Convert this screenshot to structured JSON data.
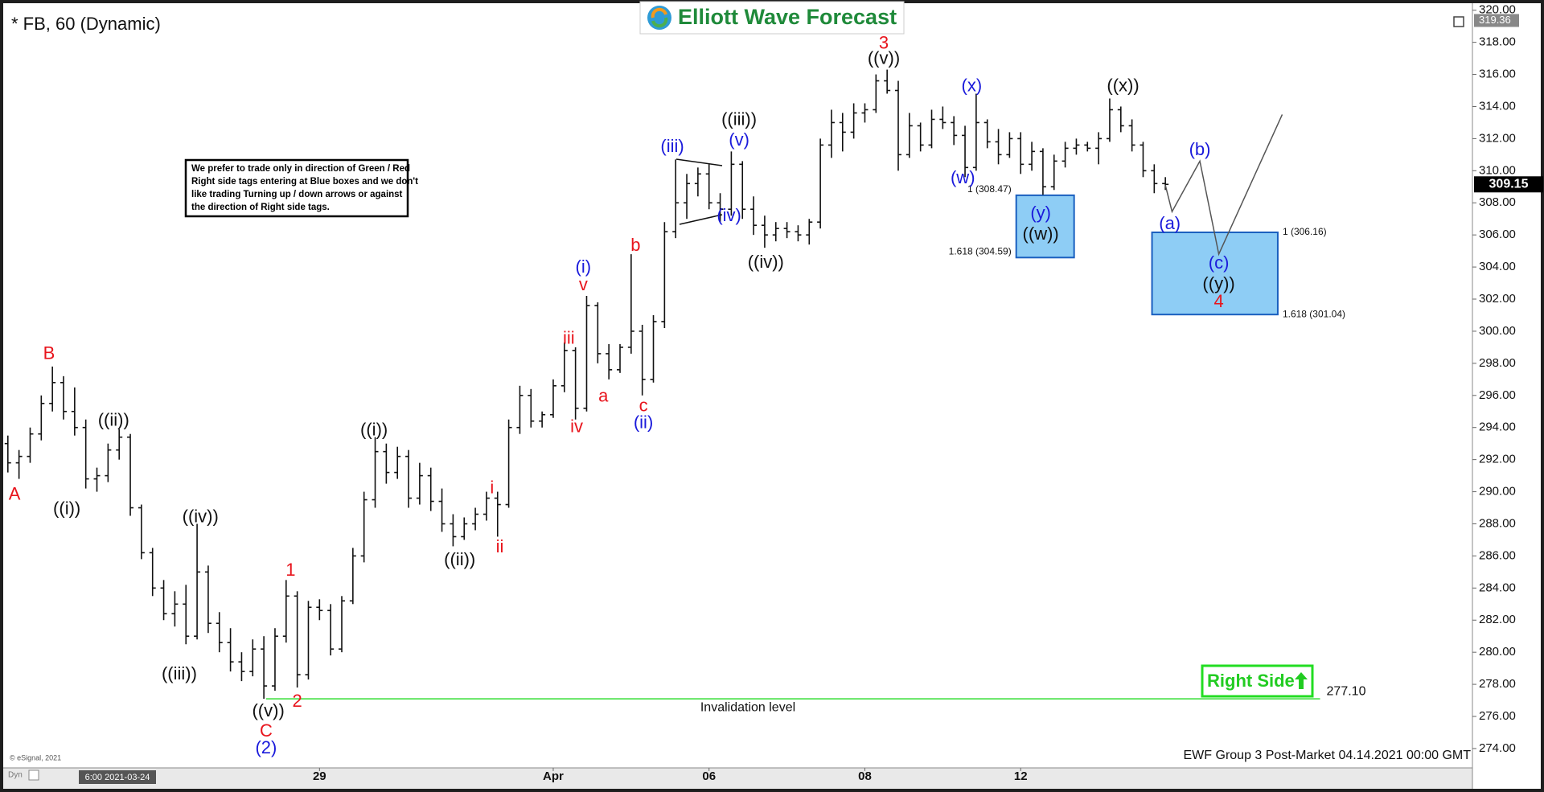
{
  "chart_data": {
    "type": "ohlc",
    "title": "* FB, 60 (Dynamic)",
    "logo": "Elliott Wave Forecast",
    "note": [
      "We prefer to trade only in direction of Green / Red",
      "Right side tags entering at Blue boxes and we don't",
      "like trading Turning up / down arrows or against",
      "the direction of Right side tags."
    ],
    "footer": "EWF Group 3 Post-Market 04.14.2021 00:00 GMT",
    "source": "© eSignal, 2021",
    "cursor_time": "6:00 2021-03-24",
    "mode": "Dyn",
    "right_side": "Right Side",
    "color": "#111111",
    "ylim": [
      272.8,
      320
    ],
    "yticks": [
      {
        "value": 274,
        "label": "274.00"
      },
      {
        "value": 276,
        "label": "276.00"
      },
      {
        "value": 278,
        "label": "278.00"
      },
      {
        "value": 280,
        "label": "280.00"
      },
      {
        "value": 282,
        "label": "282.00"
      },
      {
        "value": 284,
        "label": "284.00"
      },
      {
        "value": 286,
        "label": "286.00"
      },
      {
        "value": 288,
        "label": "288.00"
      },
      {
        "value": 290,
        "label": "290.00"
      },
      {
        "value": 292,
        "label": "292.00"
      },
      {
        "value": 294,
        "label": "294.00"
      },
      {
        "value": 296,
        "label": "296.00"
      },
      {
        "value": 298,
        "label": "298.00"
      },
      {
        "value": 300,
        "label": "300.00"
      },
      {
        "value": 302,
        "label": "302.00"
      },
      {
        "value": 304,
        "label": "304.00"
      },
      {
        "value": 306,
        "label": "306.00"
      },
      {
        "value": 308,
        "label": "308.00"
      },
      {
        "value": 310,
        "label": "310.00"
      },
      {
        "value": 312,
        "label": "312.00"
      },
      {
        "value": 314,
        "label": "314.00"
      },
      {
        "value": 316,
        "label": "316.00"
      },
      {
        "value": 318,
        "label": "318.00"
      },
      {
        "value": 320,
        "label": "320.00"
      }
    ],
    "grid": false,
    "high_flag": 319.36,
    "categories": [
      null,
      null,
      null,
      null,
      null,
      null,
      null,
      null,
      null,
      null,
      null,
      null,
      null,
      null,
      null,
      null,
      null,
      null,
      null,
      null,
      null,
      null,
      null,
      null,
      null,
      null,
      null,
      null,
      "29",
      null,
      null,
      null,
      null,
      null,
      null,
      null,
      null,
      null,
      null,
      null,
      null,
      null,
      null,
      null,
      null,
      null,
      null,
      null,
      null,
      "Apr",
      null,
      null,
      null,
      null,
      null,
      null,
      null,
      null,
      null,
      null,
      null,
      null,
      null,
      "06",
      null,
      null,
      null,
      null,
      null,
      null,
      null,
      null,
      null,
      null,
      null,
      null,
      null,
      "08",
      null,
      null,
      null,
      null,
      null,
      null,
      null,
      null,
      null,
      null,
      null,
      null,
      null,
      "12",
      null,
      null,
      null,
      null,
      null,
      null,
      null,
      null,
      null,
      null,
      null,
      null,
      null
    ],
    "ohlc": [
      [
        293.0,
        293.5,
        291.2,
        291.8
      ],
      [
        291.8,
        292.6,
        290.8,
        292.2
      ],
      [
        292.2,
        294.0,
        291.8,
        293.6
      ],
      [
        293.6,
        296.0,
        293.2,
        295.5
      ],
      [
        295.5,
        297.8,
        295.0,
        296.8
      ],
      [
        296.8,
        297.2,
        294.5,
        295.0
      ],
      [
        295.0,
        296.5,
        293.5,
        294.0
      ],
      [
        294.0,
        294.5,
        290.2,
        290.8
      ],
      [
        290.8,
        291.5,
        290.0,
        291.0
      ],
      [
        291.0,
        293.0,
        290.6,
        292.6
      ],
      [
        292.6,
        293.9,
        292.0,
        293.4
      ],
      [
        293.4,
        293.6,
        288.5,
        289.0
      ],
      [
        289.0,
        289.2,
        285.8,
        286.2
      ],
      [
        286.2,
        286.5,
        283.5,
        284.0
      ],
      [
        284.0,
        284.5,
        282.0,
        282.4
      ],
      [
        282.4,
        283.8,
        281.6,
        283.0
      ],
      [
        283.0,
        284.2,
        280.5,
        281.0
      ],
      [
        281.0,
        288.0,
        280.8,
        285.0
      ],
      [
        285.0,
        285.4,
        281.2,
        281.8
      ],
      [
        281.8,
        282.5,
        280.0,
        280.6
      ],
      [
        280.6,
        281.5,
        278.8,
        279.4
      ],
      [
        279.4,
        280.0,
        278.2,
        278.8
      ],
      [
        278.8,
        280.8,
        278.5,
        280.2
      ],
      [
        280.2,
        281.0,
        277.1,
        277.9
      ],
      [
        277.9,
        281.5,
        277.6,
        281.0
      ],
      [
        281.0,
        284.5,
        280.6,
        283.5
      ],
      [
        283.5,
        283.8,
        277.8,
        278.6
      ],
      [
        278.6,
        283.2,
        278.3,
        282.8
      ],
      [
        282.8,
        283.3,
        282.0,
        282.6
      ],
      [
        282.6,
        283.0,
        279.8,
        280.2
      ],
      [
        280.2,
        283.5,
        280.0,
        283.2
      ],
      [
        283.2,
        286.5,
        283.0,
        286.0
      ],
      [
        286.0,
        290.0,
        285.6,
        289.5
      ],
      [
        289.5,
        293.4,
        289.0,
        292.5
      ],
      [
        292.5,
        293.0,
        290.5,
        291.2
      ],
      [
        291.2,
        292.8,
        290.8,
        292.2
      ],
      [
        292.2,
        292.6,
        289.0,
        289.6
      ],
      [
        289.6,
        291.8,
        289.2,
        291.0
      ],
      [
        291.0,
        291.5,
        288.8,
        289.4
      ],
      [
        289.4,
        290.2,
        287.5,
        288.0
      ],
      [
        288.0,
        288.6,
        286.6,
        287.2
      ],
      [
        287.2,
        288.4,
        287.0,
        288.0
      ],
      [
        288.0,
        289.0,
        287.6,
        288.6
      ],
      [
        288.6,
        290.0,
        288.2,
        289.6
      ],
      [
        289.6,
        290.0,
        287.2,
        289.2
      ],
      [
        289.2,
        294.5,
        289.0,
        294.0
      ],
      [
        294.0,
        296.6,
        293.6,
        296.0
      ],
      [
        296.0,
        296.4,
        294.0,
        294.4
      ],
      [
        294.4,
        295.0,
        294.0,
        294.8
      ],
      [
        294.8,
        297.0,
        294.6,
        296.6
      ],
      [
        296.6,
        299.3,
        296.2,
        298.8
      ],
      [
        298.8,
        299.0,
        294.5,
        295.2
      ],
      [
        295.2,
        302.2,
        295.0,
        301.6
      ],
      [
        301.6,
        301.8,
        298.0,
        298.6
      ],
      [
        298.6,
        299.2,
        297.0,
        297.6
      ],
      [
        297.6,
        299.2,
        297.4,
        299.0
      ],
      [
        299.0,
        304.8,
        298.6,
        300.0
      ],
      [
        300.0,
        300.4,
        296.0,
        297.0
      ],
      [
        297.0,
        301.0,
        296.8,
        300.6
      ],
      [
        300.6,
        306.8,
        300.2,
        306.2
      ],
      [
        306.2,
        310.7,
        305.8,
        308.0
      ],
      [
        308.0,
        309.8,
        307.0,
        309.2
      ],
      [
        309.2,
        310.2,
        308.4,
        309.8
      ],
      [
        309.8,
        310.4,
        307.6,
        308.0
      ],
      [
        308.0,
        308.6,
        306.8,
        307.6
      ],
      [
        307.6,
        311.2,
        307.2,
        310.4
      ],
      [
        310.4,
        310.6,
        307.0,
        307.6
      ],
      [
        307.6,
        308.4,
        306.0,
        306.6
      ],
      [
        306.6,
        307.2,
        305.2,
        306.0
      ],
      [
        306.0,
        306.8,
        305.6,
        306.4
      ],
      [
        306.4,
        306.8,
        305.8,
        306.2
      ],
      [
        306.2,
        306.6,
        305.6,
        306.0
      ],
      [
        306.0,
        307.0,
        305.4,
        306.8
      ],
      [
        306.8,
        312.0,
        306.4,
        311.6
      ],
      [
        311.6,
        313.8,
        310.8,
        313.0
      ],
      [
        313.0,
        313.6,
        311.2,
        312.4
      ],
      [
        312.4,
        314.2,
        312.0,
        313.6
      ],
      [
        313.6,
        314.2,
        313.0,
        313.8
      ],
      [
        313.8,
        316.0,
        313.6,
        315.6
      ],
      [
        315.6,
        316.3,
        314.8,
        315.0
      ],
      [
        315.0,
        315.6,
        310.0,
        311.0
      ],
      [
        311.0,
        313.6,
        310.8,
        312.8
      ],
      [
        312.8,
        313.0,
        311.2,
        311.6
      ],
      [
        311.6,
        313.8,
        311.4,
        313.2
      ],
      [
        313.2,
        314.0,
        312.6,
        313.0
      ],
      [
        313.0,
        313.4,
        311.6,
        312.2
      ],
      [
        312.2,
        312.8,
        309.6,
        310.2
      ],
      [
        310.2,
        314.8,
        310.0,
        313.0
      ],
      [
        313.0,
        313.2,
        311.4,
        311.8
      ],
      [
        311.8,
        312.6,
        310.4,
        311.0
      ],
      [
        311.0,
        312.4,
        310.8,
        312.0
      ],
      [
        312.0,
        312.4,
        309.8,
        310.4
      ],
      [
        310.4,
        311.8,
        310.0,
        311.2
      ],
      [
        311.2,
        311.4,
        308.5,
        309.0
      ],
      [
        309.0,
        311.0,
        308.8,
        310.6
      ],
      [
        310.6,
        311.8,
        310.2,
        311.4
      ],
      [
        311.4,
        312.0,
        311.0,
        311.6
      ],
      [
        311.6,
        311.8,
        311.2,
        311.4
      ],
      [
        311.4,
        312.4,
        310.4,
        312.0
      ],
      [
        312.0,
        314.5,
        311.8,
        313.8
      ],
      [
        313.8,
        314.0,
        312.4,
        312.8
      ],
      [
        312.8,
        313.2,
        311.2,
        311.6
      ],
      [
        311.6,
        311.8,
        309.6,
        310.0
      ],
      [
        310.0,
        310.4,
        308.6,
        309.2
      ],
      [
        309.2,
        309.6,
        308.8,
        309.15
      ]
    ],
    "projection": {
      "color": "#555555",
      "x": [
        104,
        104.6,
        107.1,
        108.8,
        114.5
      ],
      "y": [
        309.1,
        307.45,
        310.6,
        304.8,
        313.5
      ]
    },
    "target_boxes": [
      {
        "xlim": [
          90.6,
          95.8
        ],
        "ylim": [
          304.59,
          308.47
        ],
        "label_side": "left",
        "labels": [
          {
            "value": 308.47,
            "label": "1 (308.47)"
          },
          {
            "value": 304.59,
            "label": "1.618 (304.59)"
          }
        ]
      },
      {
        "xlim": [
          102.8,
          114.1
        ],
        "ylim": [
          301.04,
          306.16
        ],
        "label_side": "right",
        "labels": [
          {
            "value": 306.16,
            "label": "1 (306.16)"
          },
          {
            "value": 301.04,
            "label": "1.618 (301.04)"
          }
        ]
      }
    ],
    "invalidation": {
      "value": 277.1,
      "label": "277.10",
      "text": "Invalidation level",
      "xlim": [
        23.2,
        117.9
      ],
      "color": "#33dd33"
    },
    "annotations": [
      {
        "text": "A",
        "color": "#e8141c",
        "x": 0.6,
        "y": 289.8
      },
      {
        "text": "B",
        "color": "#e8141c",
        "x": 3.7,
        "y": 298.55
      },
      {
        "text": "((i))",
        "color": "#111111",
        "x": 5.3,
        "y": 288.9
      },
      {
        "text": "((ii))",
        "color": "#111111",
        "x": 9.5,
        "y": 294.4
      },
      {
        "text": "((iii))",
        "color": "#111111",
        "x": 15.4,
        "y": 278.6
      },
      {
        "text": "((iv))",
        "color": "#111111",
        "x": 17.3,
        "y": 288.4
      },
      {
        "text": "((v))",
        "color": "#111111",
        "x": 23.4,
        "y": 276.3
      },
      {
        "text": "C",
        "color": "#e8141c",
        "x": 23.2,
        "y": 275.05
      },
      {
        "text": "(2)",
        "color": "#1a1adb",
        "x": 23.2,
        "y": 274.0
      },
      {
        "text": "1",
        "color": "#e8141c",
        "x": 25.4,
        "y": 285.05
      },
      {
        "text": "2",
        "color": "#e8141c",
        "x": 26.0,
        "y": 276.9
      },
      {
        "text": "((i))",
        "color": "#111111",
        "x": 32.9,
        "y": 293.8
      },
      {
        "text": "((ii))",
        "color": "#111111",
        "x": 40.6,
        "y": 285.7
      },
      {
        "text": "i",
        "color": "#e8141c",
        "x": 43.5,
        "y": 290.2
      },
      {
        "text": "ii",
        "color": "#e8141c",
        "x": 44.2,
        "y": 286.5
      },
      {
        "text": "iii",
        "color": "#e8141c",
        "x": 50.4,
        "y": 299.5
      },
      {
        "text": "iv",
        "color": "#e8141c",
        "x": 51.1,
        "y": 294.0
      },
      {
        "text": "v",
        "color": "#e8141c",
        "x": 51.7,
        "y": 302.85
      },
      {
        "text": "(i)",
        "color": "#1a1adb",
        "x": 51.7,
        "y": 303.95
      },
      {
        "text": "a",
        "color": "#e8141c",
        "x": 53.5,
        "y": 295.9
      },
      {
        "text": "b",
        "color": "#e8141c",
        "x": 56.4,
        "y": 305.3
      },
      {
        "text": "c",
        "color": "#e8141c",
        "x": 57.1,
        "y": 295.3
      },
      {
        "text": "(ii)",
        "color": "#1a1adb",
        "x": 57.1,
        "y": 294.25
      },
      {
        "text": "(iii)",
        "color": "#1a1adb",
        "x": 59.7,
        "y": 311.45
      },
      {
        "text": "((iii))",
        "color": "#111111",
        "x": 65.7,
        "y": 313.15
      },
      {
        "text": "(v)",
        "color": "#1a1adb",
        "x": 65.7,
        "y": 311.85
      },
      {
        "text": "(iv)",
        "color": "#1a1adb",
        "x": 64.8,
        "y": 307.15
      },
      {
        "text": "((iv))",
        "color": "#111111",
        "x": 68.1,
        "y": 304.25
      },
      {
        "text": "3",
        "color": "#e8141c",
        "x": 78.7,
        "y": 317.9
      },
      {
        "text": "((v))",
        "color": "#111111",
        "x": 78.7,
        "y": 316.95
      },
      {
        "text": "(x)",
        "color": "#1a1adb",
        "x": 86.6,
        "y": 315.25
      },
      {
        "text": "(w)",
        "color": "#1a1adb",
        "x": 85.8,
        "y": 309.5
      },
      {
        "text": "(y)",
        "color": "#1a1adb",
        "x": 92.8,
        "y": 307.3
      },
      {
        "text": "((w))",
        "color": "#111111",
        "x": 92.8,
        "y": 306.0
      },
      {
        "text": "((x))",
        "color": "#111111",
        "x": 100.2,
        "y": 315.25
      },
      {
        "text": "(a)",
        "color": "#1a1adb",
        "x": 104.4,
        "y": 306.65
      },
      {
        "text": "(b)",
        "color": "#1a1adb",
        "x": 107.1,
        "y": 311.25
      },
      {
        "text": "(c)",
        "color": "#1a1adb",
        "x": 108.8,
        "y": 304.2
      },
      {
        "text": "((y))",
        "color": "#111111",
        "x": 108.8,
        "y": 302.9
      },
      {
        "text": "4",
        "color": "#e8141c",
        "x": 108.8,
        "y": 301.8
      }
    ]
  }
}
